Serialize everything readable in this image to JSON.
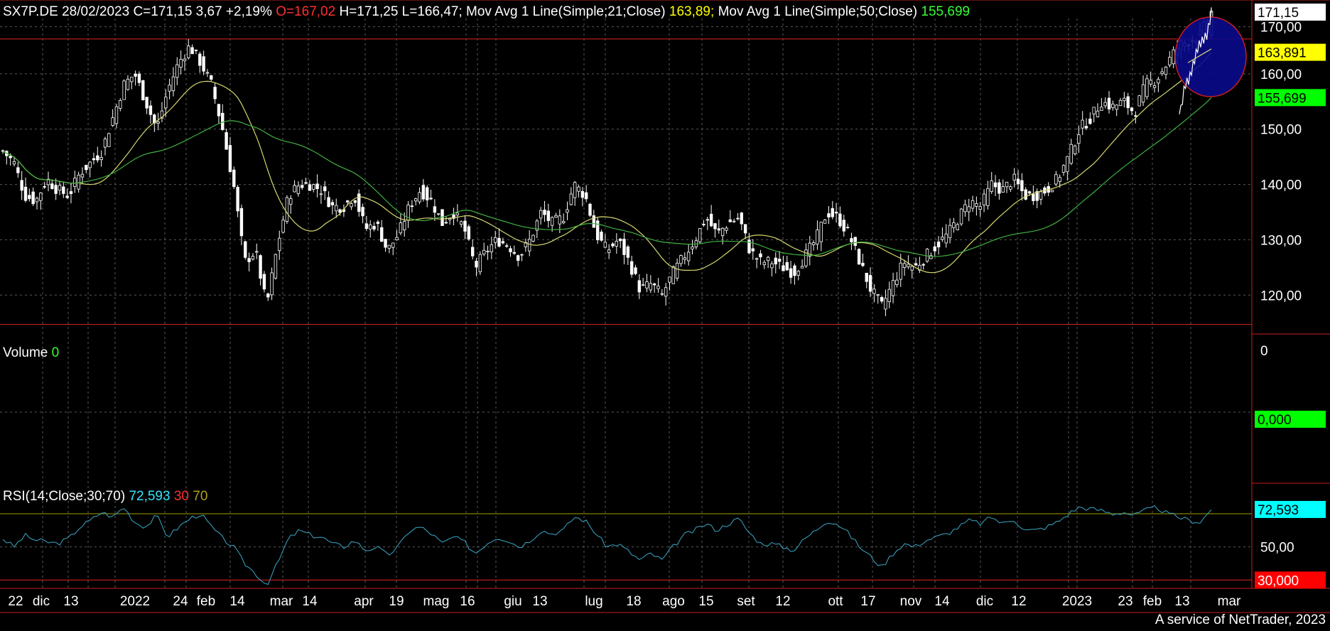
{
  "header": {
    "symbol_info": "SX7P.DE 28/02/2023 C=171,15 3,67 +2,19%",
    "open": "O=167,02",
    "hl": "H=171,25 L=166,47;",
    "ma21_label": "Mov Avg 1 Line(Simple;21;Close)",
    "ma21_value": "163,89;",
    "ma50_label": "Mov Avg 1 Line(Simple;50;Close)",
    "ma50_value": "155,699"
  },
  "volume": {
    "label": "Volume",
    "value": "0"
  },
  "rsi": {
    "label": "RSI(14;Close;30;70)",
    "value": "72,593",
    "low": "30",
    "high": "70"
  },
  "footer": "A service of NetTrader, 2023",
  "colors": {
    "background": "#000000",
    "grid": "#5a5a5a",
    "candle": "#ffffff",
    "ma21": "#d8d870",
    "ma50": "#40b040",
    "rsi_line": "#3aa8c8",
    "red_line": "#c81e1e",
    "circle_fill": "#0a0a8c",
    "circle_edge": "#c81e1e"
  },
  "chart_data": [
    {
      "type": "candlestick",
      "title": "SX7P.DE",
      "y_range": [
        114,
        170
      ],
      "y_ticks": [
        "120,00",
        "130,00",
        "140,00",
        "150,00",
        "160,00"
      ],
      "top_partial_tick": "170,00",
      "x_labels": [
        "22",
        "dic",
        "13",
        "2022",
        "24",
        "feb",
        "14",
        "mar",
        "14",
        "apr",
        "19",
        "mag",
        "16",
        "giu",
        "13",
        "lug",
        "18",
        "ago",
        "15",
        "set",
        "12",
        "ott",
        "17",
        "nov",
        "14",
        "dic",
        "12",
        "2023",
        "23",
        "feb",
        "13",
        "mar"
      ],
      "close_path": [
        146,
        144,
        138,
        137,
        141,
        139,
        138,
        142,
        144,
        146,
        152,
        158,
        160,
        155,
        150,
        157,
        162,
        165,
        162,
        158,
        150,
        140,
        126,
        128,
        118,
        129,
        138,
        140,
        140,
        139,
        136,
        136,
        138,
        132,
        133,
        128,
        131,
        136,
        139,
        137,
        133,
        135,
        132,
        125,
        128,
        130,
        129,
        127,
        130,
        135,
        133,
        134,
        140,
        138,
        131,
        128,
        130,
        126,
        121,
        122,
        120,
        124,
        127,
        130,
        134,
        131,
        133,
        134,
        128,
        126,
        126,
        125,
        124,
        127,
        130,
        135,
        134,
        131,
        126,
        121,
        118,
        122,
        126,
        125,
        127,
        129,
        131,
        134,
        137,
        136,
        140,
        139,
        141,
        138,
        138,
        139,
        141,
        145,
        150,
        152,
        155,
        154,
        155,
        153,
        158,
        159,
        162,
        165,
        166,
        167,
        171.15
      ],
      "horizontal_lines": [
        166.3,
        114.7
      ],
      "series": [
        {
          "name": "Mov Avg 1 Line(Simple;21;Close)",
          "last": 163.891
        },
        {
          "name": "Mov Avg 1 Line(Simple;50;Close)",
          "last": 155.699
        }
      ],
      "labels_right": {
        "last": "171,15",
        "ma21": "163,891",
        "ma50": "155,699"
      }
    },
    {
      "type": "bar",
      "title": "Volume",
      "y_ticks": [
        "0"
      ],
      "labels_right": {
        "value": "0,000"
      }
    },
    {
      "type": "line",
      "title": "RSI(14;Close;30;70)",
      "y_range": [
        25,
        85
      ],
      "y_ticks": [
        "50,00"
      ],
      "levels": [
        30,
        70
      ],
      "values_path": [
        55,
        50,
        57,
        54,
        53,
        52,
        55,
        62,
        66,
        71,
        68,
        74,
        65,
        62,
        69,
        56,
        62,
        67,
        70,
        62,
        55,
        50,
        40,
        34,
        27,
        40,
        55,
        60,
        57,
        56,
        52,
        50,
        54,
        48,
        50,
        45,
        50,
        60,
        62,
        58,
        52,
        56,
        53,
        46,
        52,
        56,
        54,
        50,
        54,
        60,
        58,
        60,
        68,
        66,
        58,
        50,
        52,
        47,
        42,
        46,
        42,
        50,
        57,
        60,
        64,
        60,
        64,
        67,
        58,
        52,
        52,
        50,
        48,
        55,
        60,
        66,
        64,
        58,
        50,
        44,
        38,
        46,
        52,
        50,
        54,
        56,
        58,
        62,
        66,
        64,
        68,
        64,
        67,
        60,
        60,
        62,
        65,
        70,
        74,
        73,
        72,
        70,
        71,
        69,
        72,
        74,
        70,
        68,
        66,
        65,
        72.593
      ],
      "labels_right": {
        "rsi": "72,593",
        "level": "30,000"
      }
    }
  ]
}
